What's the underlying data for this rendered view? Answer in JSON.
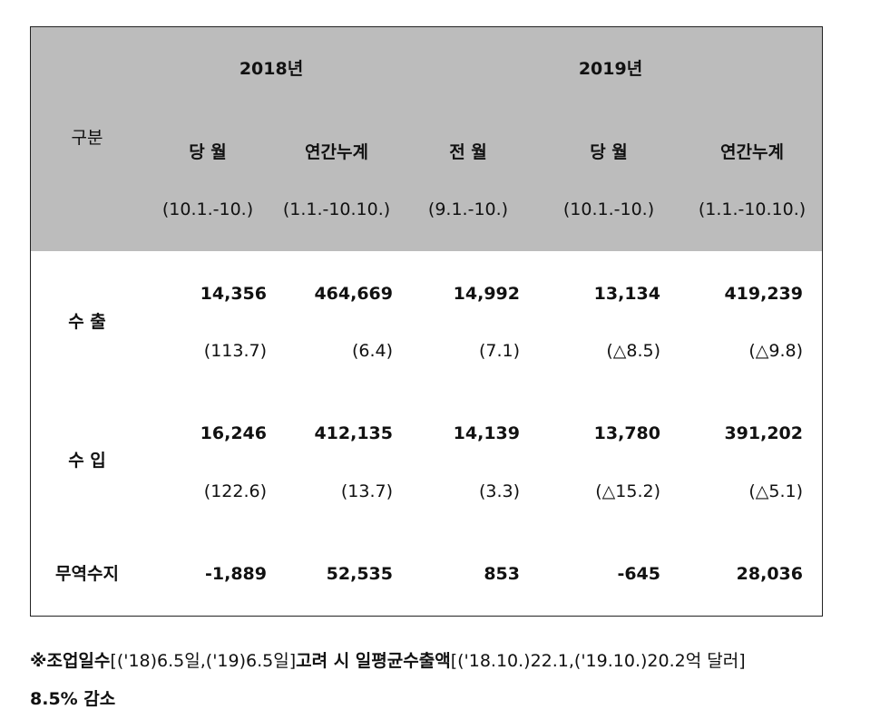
{
  "header": {
    "category": "구분",
    "years": [
      "2018년",
      "2019년"
    ],
    "columns": [
      {
        "label": "당 월",
        "period": "(10.1.-10.)"
      },
      {
        "label": "연간누계",
        "period": "(1.1.-10.10.)"
      },
      {
        "label": "전 월",
        "period": "(9.1.-10.)"
      },
      {
        "label": "당 월",
        "period": "(10.1.-10.)"
      },
      {
        "label": "연간누계",
        "period": "(1.1.-10.10.)"
      }
    ]
  },
  "rows": [
    {
      "label": "수 출",
      "values": [
        "14,356",
        "464,669",
        "14,992",
        "13,134",
        "419,239"
      ],
      "changes": [
        "(113.7)",
        "(6.4)",
        "(7.1)",
        "(△8.5)",
        "(△9.8)"
      ]
    },
    {
      "label": "수 입",
      "values": [
        "16,246",
        "412,135",
        "14,139",
        "13,780",
        "391,202"
      ],
      "changes": [
        "(122.6)",
        "(13.7)",
        "(3.3)",
        "(△15.2)",
        "(△5.1)"
      ]
    },
    {
      "label": "무역수지",
      "values": [
        "-1,889",
        "52,535",
        "853",
        "-645",
        "28,036"
      ]
    }
  ],
  "note": {
    "p1": "※조업일수",
    "p2": "[('18)6.5일,('19)6.5일]",
    "p3": "고려 시 일평균수출액",
    "p4": "[('18.10.)22.1,('19.10.)20.2억 달러]",
    "p5": "8.5% 감소"
  }
}
